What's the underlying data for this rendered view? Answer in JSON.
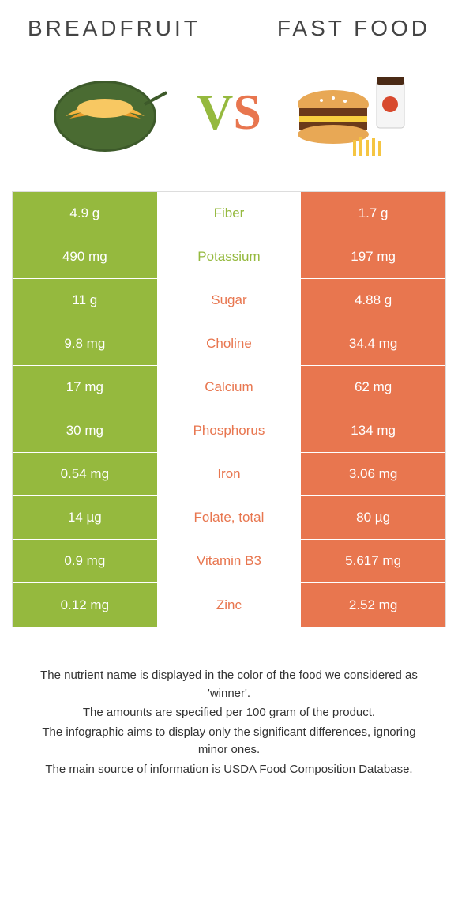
{
  "header": {
    "left_title": "BREADFRUIT",
    "right_title": "FAST FOOD"
  },
  "vs": {
    "v": "V",
    "s": "S"
  },
  "colors": {
    "left": "#95b93e",
    "right": "#e8764f",
    "text": "#444444",
    "border": "#dddddd"
  },
  "rows": [
    {
      "left": "4.9 g",
      "label": "Fiber",
      "right": "1.7 g",
      "winner": "left"
    },
    {
      "left": "490 mg",
      "label": "Potassium",
      "right": "197 mg",
      "winner": "left"
    },
    {
      "left": "11 g",
      "label": "Sugar",
      "right": "4.88 g",
      "winner": "right"
    },
    {
      "left": "9.8 mg",
      "label": "Choline",
      "right": "34.4 mg",
      "winner": "right"
    },
    {
      "left": "17 mg",
      "label": "Calcium",
      "right": "62 mg",
      "winner": "right"
    },
    {
      "left": "30 mg",
      "label": "Phosphorus",
      "right": "134 mg",
      "winner": "right"
    },
    {
      "left": "0.54 mg",
      "label": "Iron",
      "right": "3.06 mg",
      "winner": "right"
    },
    {
      "left": "14 µg",
      "label": "Folate, total",
      "right": "80 µg",
      "winner": "right"
    },
    {
      "left": "0.9 mg",
      "label": "Vitamin B3",
      "right": "5.617 mg",
      "winner": "right"
    },
    {
      "left": "0.12 mg",
      "label": "Zinc",
      "right": "2.52 mg",
      "winner": "right"
    }
  ],
  "notes": [
    "The nutrient name is displayed in the color of the food we considered as 'winner'.",
    "The amounts are specified per 100 gram of the product.",
    "The infographic aims to display only the significant differences, ignoring minor ones.",
    "The main source of information is USDA Food Composition Database."
  ]
}
